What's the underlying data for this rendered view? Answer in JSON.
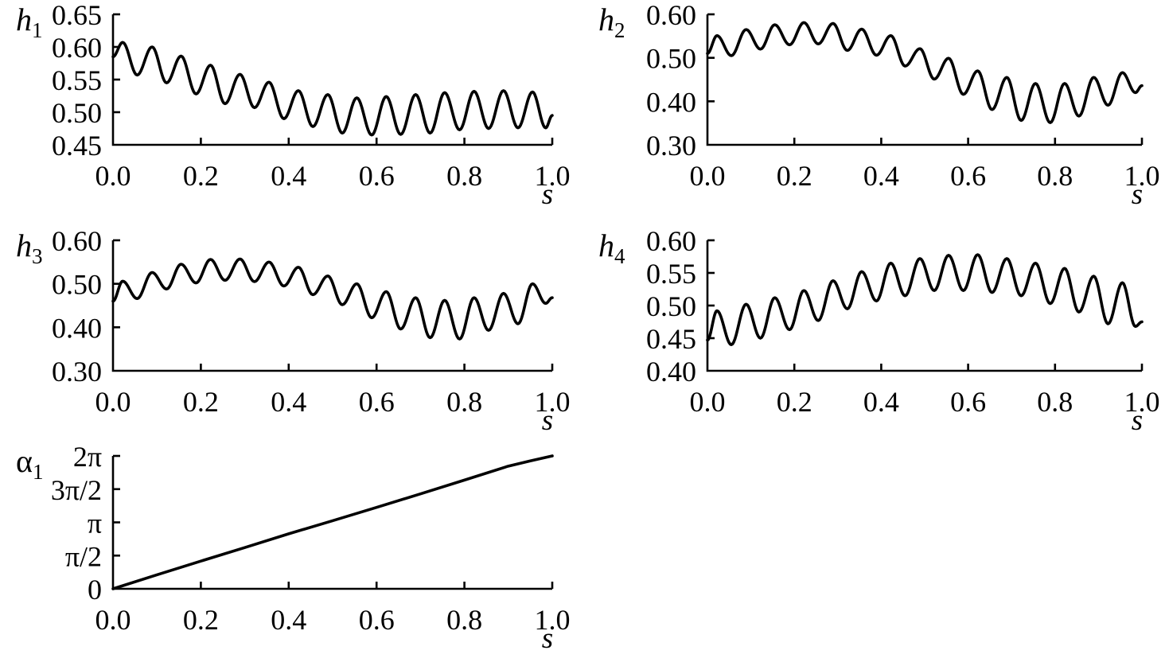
{
  "figure": {
    "background": "#ffffff",
    "line_color": "#000000",
    "description": "Five line plots versus arc coordinate s: oscillating thickness curves h1, h2, h3, h4 and monotonically increasing angle alpha1 from 0 to 2 pi."
  },
  "chart_data": [
    {
      "id": "h1",
      "type": "line",
      "position": {
        "row": 0,
        "col": 0
      },
      "ylabel": {
        "base": "h",
        "sub": "1",
        "italic": true
      },
      "xlabel": "s",
      "xlim": [
        0,
        1
      ],
      "ylim": [
        0.45,
        0.65
      ],
      "xticks": [
        0,
        0.2,
        0.4,
        0.6,
        0.8,
        1
      ],
      "xtick_labels": [
        "0.0",
        "0.2",
        "0.4",
        "0.6",
        "0.8",
        "1.0"
      ],
      "yticks": [
        0.45,
        0.5,
        0.55,
        0.6,
        0.65
      ],
      "ytick_labels": [
        "0.45",
        "0.50",
        "0.55",
        "0.60",
        "0.65"
      ],
      "grid": false,
      "legend": null,
      "interp": "cosine",
      "points": [
        [
          0,
          0.585
        ],
        [
          0.022,
          0.607
        ],
        [
          0.055,
          0.557
        ],
        [
          0.089,
          0.6
        ],
        [
          0.122,
          0.545
        ],
        [
          0.155,
          0.586
        ],
        [
          0.189,
          0.528
        ],
        [
          0.222,
          0.572
        ],
        [
          0.255,
          0.513
        ],
        [
          0.289,
          0.558
        ],
        [
          0.322,
          0.507
        ],
        [
          0.355,
          0.546
        ],
        [
          0.389,
          0.49
        ],
        [
          0.422,
          0.533
        ],
        [
          0.455,
          0.478
        ],
        [
          0.489,
          0.527
        ],
        [
          0.522,
          0.468
        ],
        [
          0.555,
          0.522
        ],
        [
          0.589,
          0.465
        ],
        [
          0.622,
          0.524
        ],
        [
          0.655,
          0.466
        ],
        [
          0.689,
          0.527
        ],
        [
          0.722,
          0.468
        ],
        [
          0.755,
          0.53
        ],
        [
          0.789,
          0.473
        ],
        [
          0.822,
          0.532
        ],
        [
          0.855,
          0.475
        ],
        [
          0.889,
          0.533
        ],
        [
          0.922,
          0.476
        ],
        [
          0.955,
          0.531
        ],
        [
          0.985,
          0.476
        ],
        [
          1.0,
          0.495
        ]
      ]
    },
    {
      "id": "h2",
      "type": "line",
      "position": {
        "row": 0,
        "col": 1
      },
      "ylabel": {
        "base": "h",
        "sub": "2",
        "italic": true
      },
      "xlabel": "s",
      "xlim": [
        0,
        1
      ],
      "ylim": [
        0.3,
        0.6
      ],
      "xticks": [
        0,
        0.2,
        0.4,
        0.6,
        0.8,
        1
      ],
      "xtick_labels": [
        "0.0",
        "0.2",
        "0.4",
        "0.6",
        "0.8",
        "1.0"
      ],
      "yticks": [
        0.3,
        0.4,
        0.5,
        0.6
      ],
      "ytick_labels": [
        "0.30",
        "0.40",
        "0.50",
        "0.60"
      ],
      "grid": false,
      "legend": null,
      "interp": "cosine",
      "points": [
        [
          0,
          0.51
        ],
        [
          0.022,
          0.551
        ],
        [
          0.055,
          0.505
        ],
        [
          0.089,
          0.565
        ],
        [
          0.122,
          0.52
        ],
        [
          0.155,
          0.576
        ],
        [
          0.189,
          0.53
        ],
        [
          0.222,
          0.581
        ],
        [
          0.255,
          0.532
        ],
        [
          0.289,
          0.579
        ],
        [
          0.322,
          0.517
        ],
        [
          0.355,
          0.566
        ],
        [
          0.389,
          0.506
        ],
        [
          0.422,
          0.551
        ],
        [
          0.455,
          0.481
        ],
        [
          0.489,
          0.521
        ],
        [
          0.522,
          0.451
        ],
        [
          0.555,
          0.499
        ],
        [
          0.589,
          0.416
        ],
        [
          0.622,
          0.47
        ],
        [
          0.655,
          0.381
        ],
        [
          0.689,
          0.455
        ],
        [
          0.722,
          0.356
        ],
        [
          0.755,
          0.441
        ],
        [
          0.789,
          0.351
        ],
        [
          0.822,
          0.441
        ],
        [
          0.855,
          0.366
        ],
        [
          0.889,
          0.455
        ],
        [
          0.922,
          0.391
        ],
        [
          0.955,
          0.466
        ],
        [
          0.985,
          0.42
        ],
        [
          1.0,
          0.436
        ]
      ]
    },
    {
      "id": "h3",
      "type": "line",
      "position": {
        "row": 1,
        "col": 0
      },
      "ylabel": {
        "base": "h",
        "sub": "3",
        "italic": true
      },
      "xlabel": "s",
      "xlim": [
        0,
        1
      ],
      "ylim": [
        0.3,
        0.6
      ],
      "xticks": [
        0,
        0.2,
        0.4,
        0.6,
        0.8,
        1
      ],
      "xtick_labels": [
        "0.0",
        "0.2",
        "0.4",
        "0.6",
        "0.8",
        "1.0"
      ],
      "yticks": [
        0.3,
        0.4,
        0.5,
        0.6
      ],
      "ytick_labels": [
        "0.30",
        "0.40",
        "0.50",
        "0.60"
      ],
      "grid": false,
      "legend": null,
      "interp": "cosine",
      "points": [
        [
          0,
          0.46
        ],
        [
          0.022,
          0.506
        ],
        [
          0.055,
          0.466
        ],
        [
          0.089,
          0.526
        ],
        [
          0.122,
          0.488
        ],
        [
          0.155,
          0.545
        ],
        [
          0.189,
          0.502
        ],
        [
          0.222,
          0.556
        ],
        [
          0.255,
          0.508
        ],
        [
          0.289,
          0.557
        ],
        [
          0.322,
          0.505
        ],
        [
          0.355,
          0.55
        ],
        [
          0.389,
          0.495
        ],
        [
          0.422,
          0.538
        ],
        [
          0.455,
          0.475
        ],
        [
          0.489,
          0.518
        ],
        [
          0.522,
          0.452
        ],
        [
          0.555,
          0.5
        ],
        [
          0.589,
          0.422
        ],
        [
          0.622,
          0.482
        ],
        [
          0.655,
          0.396
        ],
        [
          0.689,
          0.468
        ],
        [
          0.722,
          0.376
        ],
        [
          0.755,
          0.462
        ],
        [
          0.789,
          0.373
        ],
        [
          0.822,
          0.468
        ],
        [
          0.855,
          0.393
        ],
        [
          0.889,
          0.478
        ],
        [
          0.922,
          0.408
        ],
        [
          0.955,
          0.5
        ],
        [
          0.985,
          0.455
        ],
        [
          1.0,
          0.468
        ]
      ]
    },
    {
      "id": "h4",
      "type": "line",
      "position": {
        "row": 1,
        "col": 1
      },
      "ylabel": {
        "base": "h",
        "sub": "4",
        "italic": true
      },
      "xlabel": "s",
      "xlim": [
        0,
        1
      ],
      "ylim": [
        0.4,
        0.6
      ],
      "xticks": [
        0,
        0.2,
        0.4,
        0.6,
        0.8,
        1
      ],
      "xtick_labels": [
        "0.0",
        "0.2",
        "0.4",
        "0.6",
        "0.8",
        "1.0"
      ],
      "yticks": [
        0.4,
        0.45,
        0.5,
        0.55,
        0.6
      ],
      "ytick_labels": [
        "0.40",
        "0.45",
        "0.50",
        "0.55",
        "0.60"
      ],
      "grid": false,
      "legend": null,
      "interp": "cosine",
      "points": [
        [
          0,
          0.447
        ],
        [
          0.022,
          0.492
        ],
        [
          0.055,
          0.44
        ],
        [
          0.089,
          0.502
        ],
        [
          0.122,
          0.45
        ],
        [
          0.155,
          0.512
        ],
        [
          0.189,
          0.463
        ],
        [
          0.222,
          0.523
        ],
        [
          0.255,
          0.477
        ],
        [
          0.289,
          0.538
        ],
        [
          0.322,
          0.495
        ],
        [
          0.355,
          0.552
        ],
        [
          0.389,
          0.507
        ],
        [
          0.422,
          0.565
        ],
        [
          0.455,
          0.515
        ],
        [
          0.489,
          0.572
        ],
        [
          0.522,
          0.523
        ],
        [
          0.555,
          0.577
        ],
        [
          0.589,
          0.523
        ],
        [
          0.622,
          0.578
        ],
        [
          0.655,
          0.52
        ],
        [
          0.689,
          0.572
        ],
        [
          0.722,
          0.515
        ],
        [
          0.755,
          0.565
        ],
        [
          0.789,
          0.503
        ],
        [
          0.822,
          0.557
        ],
        [
          0.855,
          0.49
        ],
        [
          0.889,
          0.545
        ],
        [
          0.922,
          0.472
        ],
        [
          0.955,
          0.535
        ],
        [
          0.985,
          0.468
        ],
        [
          1.0,
          0.475
        ]
      ]
    },
    {
      "id": "alpha1",
      "type": "line",
      "position": {
        "row": 2,
        "col": 0
      },
      "ylabel": {
        "base": "α",
        "sub": "1",
        "italic": false
      },
      "xlabel": "s",
      "xlim": [
        0,
        1
      ],
      "ylim": [
        0,
        6.2832
      ],
      "xticks": [
        0,
        0.2,
        0.4,
        0.6,
        0.8,
        1
      ],
      "xtick_labels": [
        "0.0",
        "0.2",
        "0.4",
        "0.6",
        "0.8",
        "1.0"
      ],
      "yticks": [
        0,
        1.5708,
        3.1416,
        4.7124,
        6.2832
      ],
      "ytick_labels": [
        "0",
        "π/2",
        "π",
        "3π/2",
        "2π"
      ],
      "grid": false,
      "legend": null,
      "interp": "linear",
      "points": [
        [
          0,
          0
        ],
        [
          0.1,
          0.66
        ],
        [
          0.2,
          1.31
        ],
        [
          0.3,
          1.95
        ],
        [
          0.4,
          2.6
        ],
        [
          0.5,
          3.22
        ],
        [
          0.6,
          3.85
        ],
        [
          0.7,
          4.49
        ],
        [
          0.8,
          5.14
        ],
        [
          0.9,
          5.8
        ],
        [
          0.95,
          6.05
        ],
        [
          1.0,
          6.283
        ]
      ]
    }
  ]
}
